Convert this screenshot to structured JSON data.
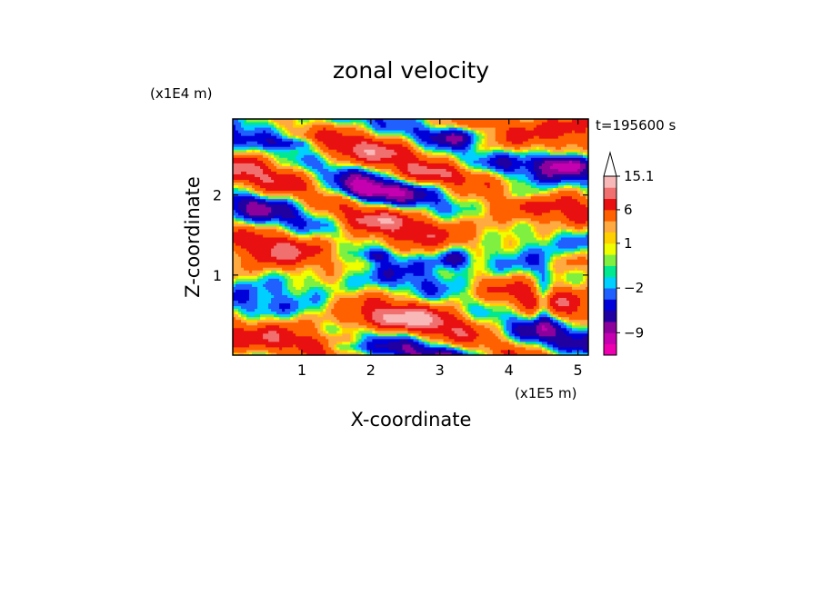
{
  "chart_data": {
    "type": "heatmap",
    "title": "zonal velocity",
    "xlabel": "X-coordinate",
    "ylabel": "Z-coordinate",
    "x_unit": "(x1E5 m)",
    "y_unit": "(x1E4 m)",
    "time_label": "t=195600 s",
    "xlim": [
      0,
      5.15
    ],
    "ylim": [
      0,
      2.95
    ],
    "x_ticks": [
      1,
      2,
      3,
      4,
      5
    ],
    "y_ticks": [
      1,
      2
    ],
    "colorbar": {
      "levels": [
        -15,
        -12,
        -9,
        -7,
        -5,
        -3.5,
        -2,
        -1,
        -0.5,
        0.5,
        1,
        1.5,
        3,
        6,
        9,
        12,
        15.1
      ],
      "colors": [
        "#ee00b0",
        "#c400b0",
        "#8c009c",
        "#2000a0",
        "#0000d8",
        "#2060ff",
        "#00d0ff",
        "#00e890",
        "#80f040",
        "#f0ff00",
        "#ffd000",
        "#ffaa40",
        "#ff6000",
        "#e81010",
        "#f07070",
        "#f8b8b8"
      ],
      "labels": [
        {
          "text": "15.1",
          "value": 15.1
        },
        {
          "text": "6",
          "value": 6
        },
        {
          "text": "1",
          "value": 1
        },
        {
          "text": "−2",
          "value": -2
        },
        {
          "text": "−9",
          "value": -9
        }
      ]
    }
  }
}
